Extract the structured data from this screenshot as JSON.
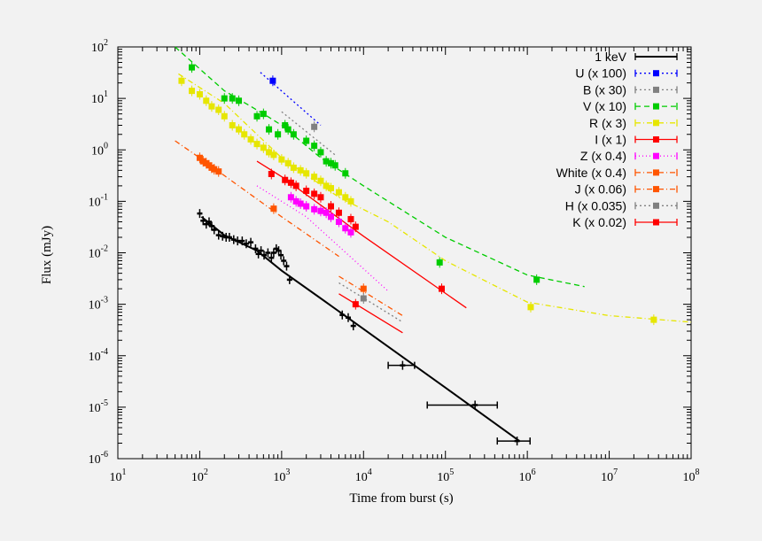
{
  "chart_data": {
    "type": "scatter",
    "xlabel": "Time from burst (s)",
    "ylabel": "Flux (mJy)",
    "xscale": "log",
    "yscale": "log",
    "xlim": [
      10,
      100000000
    ],
    "ylim": [
      1e-06,
      100
    ],
    "x_ticks": [
      {
        "value": 10,
        "base": "10",
        "exp": "1"
      },
      {
        "value": 100,
        "base": "10",
        "exp": "2"
      },
      {
        "value": 1000,
        "base": "10",
        "exp": "3"
      },
      {
        "value": 10000,
        "base": "10",
        "exp": "4"
      },
      {
        "value": 100000,
        "base": "10",
        "exp": "5"
      },
      {
        "value": 1000000,
        "base": "10",
        "exp": "6"
      },
      {
        "value": 10000000,
        "base": "10",
        "exp": "7"
      },
      {
        "value": 100000000,
        "base": "10",
        "exp": "8"
      }
    ],
    "y_ticks": [
      {
        "value": 100,
        "base": "10",
        "exp": "2"
      },
      {
        "value": 10,
        "base": "10",
        "exp": "1"
      },
      {
        "value": 1,
        "base": "10",
        "exp": "0"
      },
      {
        "value": 0.1,
        "base": "10",
        "exp": "-1"
      },
      {
        "value": 0.01,
        "base": "10",
        "exp": "-2"
      },
      {
        "value": 0.001,
        "base": "10",
        "exp": "-3"
      },
      {
        "value": 0.0001,
        "base": "10",
        "exp": "-4"
      },
      {
        "value": 1e-05,
        "base": "10",
        "exp": "-5"
      },
      {
        "value": 1e-06,
        "base": "10",
        "exp": "-6"
      }
    ],
    "grid": false,
    "legend_position": "top-right",
    "series": [
      {
        "name": "1 keV",
        "color": "#000000",
        "dash": "",
        "marker": "cross",
        "fit": [
          [
            105,
            0.05
          ],
          [
            200,
            0.022
          ],
          [
            500,
            0.011
          ],
          [
            1000,
            0.0045
          ],
          [
            3000,
            0.0013
          ],
          [
            10000,
            0.00033
          ],
          [
            100000,
            2.4e-05
          ],
          [
            800000,
            2.2e-06
          ]
        ],
        "points": [
          [
            100,
            0.058
          ],
          [
            110,
            0.042
          ],
          [
            120,
            0.036
          ],
          [
            130,
            0.04
          ],
          [
            140,
            0.033
          ],
          [
            150,
            0.028
          ],
          [
            170,
            0.022
          ],
          [
            190,
            0.021
          ],
          [
            210,
            0.02
          ],
          [
            230,
            0.02
          ],
          [
            260,
            0.018
          ],
          [
            290,
            0.017
          ],
          [
            330,
            0.017
          ],
          [
            370,
            0.015
          ],
          [
            420,
            0.016
          ],
          [
            480,
            0.012
          ],
          [
            520,
            0.0095
          ],
          [
            560,
            0.011
          ],
          [
            610,
            0.009
          ],
          [
            680,
            0.01
          ],
          [
            750,
            0.008
          ],
          [
            800,
            0.01
          ],
          [
            860,
            0.012
          ],
          [
            920,
            0.011
          ],
          [
            980,
            0.009
          ],
          [
            1060,
            0.007
          ],
          [
            1150,
            0.0055
          ],
          [
            1250,
            0.003
          ],
          [
            5500,
            0.00062
          ],
          [
            6500,
            0.00055
          ],
          [
            7500,
            0.00038
          ],
          [
            30000,
            6.5e-05
          ],
          [
            230000,
            1.1e-05
          ],
          [
            750000,
            2.2e-06
          ]
        ],
        "xerr_points": [
          [
            30000,
            20000,
            42000
          ],
          [
            230000,
            60000,
            430000
          ],
          [
            750000,
            430000,
            1080000
          ]
        ]
      },
      {
        "name": "U (x 100)",
        "color": "#0000ff",
        "dash": "2,3",
        "marker": "square",
        "fit": [
          [
            550,
            32
          ],
          [
            3000,
            3
          ]
        ],
        "points": [
          [
            780,
            22
          ]
        ]
      },
      {
        "name": "B (x 30)",
        "color": "#808080",
        "dash": "2,3",
        "marker": "square",
        "fit": [
          [
            1000,
            5.5
          ],
          [
            4500,
            0.8
          ]
        ],
        "points": [
          [
            2500,
            2.8
          ]
        ]
      },
      {
        "name": "V (x 10)",
        "color": "#00cc00",
        "dash": "6,4",
        "marker": "square",
        "fit": [
          [
            50,
            100
          ],
          [
            200,
            14
          ],
          [
            600,
            5
          ],
          [
            1000,
            3
          ],
          [
            3000,
            0.7
          ],
          [
            10000,
            0.2
          ],
          [
            100000,
            0.02
          ],
          [
            1000000,
            0.0037
          ],
          [
            5000000,
            0.0022
          ]
        ],
        "points": [
          [
            80,
            40
          ],
          [
            200,
            10
          ],
          [
            250,
            10
          ],
          [
            300,
            9
          ],
          [
            500,
            4.5
          ],
          [
            600,
            5
          ],
          [
            700,
            2.5
          ],
          [
            900,
            2
          ],
          [
            1100,
            3
          ],
          [
            1200,
            2.5
          ],
          [
            1400,
            2
          ],
          [
            2000,
            1.5
          ],
          [
            2500,
            1.2
          ],
          [
            3000,
            0.9
          ],
          [
            3500,
            0.6
          ],
          [
            4000,
            0.55
          ],
          [
            4500,
            0.5
          ],
          [
            6000,
            0.35
          ],
          [
            85000,
            0.0065
          ],
          [
            1300000,
            0.003
          ]
        ]
      },
      {
        "name": "R (x 3)",
        "color": "#e6e600",
        "dash": "6,3,1,3",
        "marker": "square",
        "fit": [
          [
            55,
            30
          ],
          [
            200,
            8
          ],
          [
            1000,
            0.7
          ],
          [
            5000,
            0.12
          ],
          [
            20000,
            0.04
          ],
          [
            100000,
            0.007
          ],
          [
            1000000,
            0.0011
          ],
          [
            10000000,
            0.0006
          ],
          [
            100000000,
            0.00045
          ]
        ],
        "points": [
          [
            60,
            22
          ],
          [
            80,
            14
          ],
          [
            100,
            12
          ],
          [
            120,
            9
          ],
          [
            140,
            7
          ],
          [
            170,
            6
          ],
          [
            200,
            4.5
          ],
          [
            250,
            3
          ],
          [
            300,
            2.5
          ],
          [
            350,
            2
          ],
          [
            420,
            1.6
          ],
          [
            500,
            1.3
          ],
          [
            600,
            1.1
          ],
          [
            700,
            0.9
          ],
          [
            800,
            0.8
          ],
          [
            1000,
            0.65
          ],
          [
            1200,
            0.55
          ],
          [
            1400,
            0.45
          ],
          [
            1700,
            0.4
          ],
          [
            2000,
            0.35
          ],
          [
            2500,
            0.3
          ],
          [
            3000,
            0.25
          ],
          [
            3500,
            0.2
          ],
          [
            4000,
            0.18
          ],
          [
            5000,
            0.15
          ],
          [
            6000,
            0.12
          ],
          [
            7000,
            0.1
          ],
          [
            1100000,
            0.00088
          ],
          [
            35000000,
            0.0005
          ]
        ]
      },
      {
        "name": "I (x 1)",
        "color": "#ff0000",
        "dash": "",
        "marker": "square",
        "fit": [
          [
            500,
            0.6
          ],
          [
            1000,
            0.3
          ],
          [
            10000,
            0.021
          ],
          [
            180000,
            0.00085
          ]
        ],
        "points": [
          [
            750,
            0.34
          ],
          [
            1100,
            0.26
          ],
          [
            1300,
            0.23
          ],
          [
            1500,
            0.2
          ],
          [
            2000,
            0.16
          ],
          [
            2500,
            0.14
          ],
          [
            3000,
            0.12
          ],
          [
            4000,
            0.08
          ],
          [
            5000,
            0.06
          ],
          [
            7000,
            0.045
          ],
          [
            8000,
            0.032
          ],
          [
            90000,
            0.002
          ]
        ]
      },
      {
        "name": "Z (x 0.4)",
        "color": "#ff00ff",
        "dash": "1,3",
        "marker": "square",
        "fit": [
          [
            500,
            0.2
          ],
          [
            2000,
            0.05
          ],
          [
            20000,
            0.0018
          ]
        ],
        "points": [
          [
            1300,
            0.12
          ],
          [
            1500,
            0.1
          ],
          [
            1700,
            0.09
          ],
          [
            2000,
            0.08
          ],
          [
            2500,
            0.07
          ],
          [
            3000,
            0.065
          ],
          [
            3500,
            0.06
          ],
          [
            4000,
            0.05
          ],
          [
            5000,
            0.04
          ],
          [
            6000,
            0.03
          ],
          [
            7000,
            0.025
          ]
        ]
      },
      {
        "name": "White (x 0.4)",
        "color": "#ff5500",
        "dash": "6,3,1,3",
        "marker": "square",
        "fit": [
          [
            50,
            1.5
          ],
          [
            100,
            0.7
          ],
          [
            1000,
            0.05
          ],
          [
            5000,
            0.0085
          ]
        ],
        "points": [
          [
            100,
            0.7
          ],
          [
            110,
            0.6
          ],
          [
            120,
            0.55
          ],
          [
            130,
            0.5
          ],
          [
            140,
            0.45
          ],
          [
            150,
            0.42
          ],
          [
            170,
            0.38
          ]
        ]
      },
      {
        "name": "J (x 0.06)",
        "color": "#ff5500",
        "dash": "6,3,1,3",
        "marker": "square",
        "fit": [
          [
            5000,
            0.0035
          ],
          [
            30000,
            0.0006
          ]
        ],
        "points": [
          [
            800,
            0.072
          ],
          [
            10000,
            0.002
          ]
        ]
      },
      {
        "name": "H (x 0.035)",
        "color": "#808080",
        "dash": "2,3",
        "marker": "square",
        "fit": [
          [
            5000,
            0.0026
          ],
          [
            30000,
            0.00045
          ]
        ],
        "points": [
          [
            10000,
            0.0013
          ]
        ]
      },
      {
        "name": "K (x 0.02)",
        "color": "#ff0000",
        "dash": "",
        "marker": "square",
        "fit": [
          [
            5000,
            0.0016
          ],
          [
            30000,
            0.00028
          ]
        ],
        "points": [
          [
            8000,
            0.001
          ]
        ]
      }
    ]
  }
}
